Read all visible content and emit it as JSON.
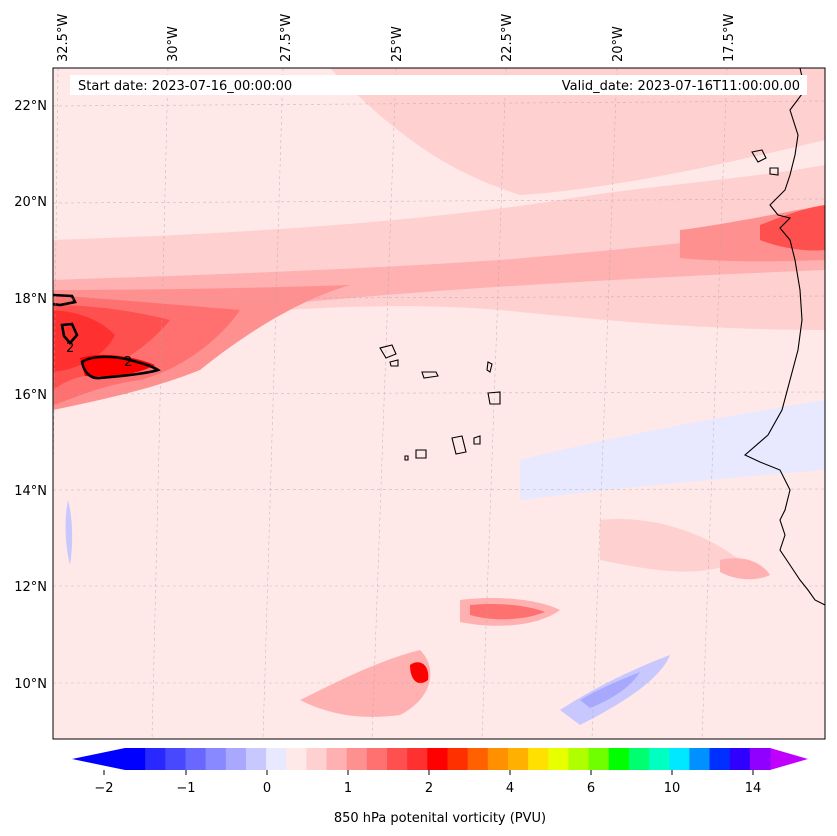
{
  "map": {
    "start_date": "Start date: 2023-07-16_00:00:00",
    "valid_date": "Valid_date: 2023-07-16T11:00:00.00",
    "contour_label": "2",
    "lon_ticks": [
      "32.5°W",
      "30°W",
      "27.5°W",
      "25°W",
      "22.5°W",
      "20°W",
      "17.5°W"
    ],
    "lat_ticks": [
      "22°N",
      "20°N",
      "18°N",
      "16°N",
      "14°N",
      "12°N",
      "10°N"
    ]
  },
  "colorbar": {
    "label": "850 hPa potenital vorticity (PVU)",
    "tick_labels": [
      "−2",
      "−1",
      "0",
      "1",
      "2",
      "4",
      "6",
      "10",
      "14"
    ],
    "colors": [
      "#0000ff",
      "#2828ff",
      "#4848ff",
      "#6868ff",
      "#8888ff",
      "#a8a8ff",
      "#c8c8ff",
      "#e8e8ff",
      "#ffe8e8",
      "#ffd0d0",
      "#ffb0b0",
      "#ff9090",
      "#ff7070",
      "#ff5050",
      "#ff3030",
      "#ff0000",
      "#ff3000",
      "#ff6000",
      "#ff9000",
      "#ffb000",
      "#ffe000",
      "#e8ff00",
      "#b0ff00",
      "#70ff00",
      "#00ff00",
      "#00ff70",
      "#00ffc0",
      "#00e8ff",
      "#0090ff",
      "#0030ff",
      "#3000ff",
      "#9000ff"
    ],
    "extend_min_color": "#0000ff",
    "extend_max_color": "#c000ff"
  }
}
